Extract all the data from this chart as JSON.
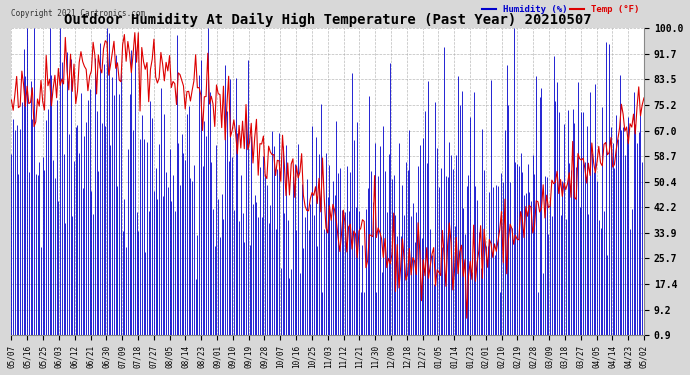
{
  "title": "Outdoor Humidity At Daily High Temperature (Past Year) 20210507",
  "copyright": "Copyright 2021 Cartronics.com",
  "legend_humidity": "Humidity (%)",
  "legend_temp": "Temp (°F)",
  "ylim": [
    0.9,
    100.0
  ],
  "yticks": [
    0.9,
    9.2,
    17.4,
    25.7,
    33.9,
    42.2,
    50.4,
    58.7,
    67.0,
    75.2,
    83.5,
    91.7,
    100.0
  ],
  "background_color": "#d8d8d8",
  "plot_bg_color": "#ffffff",
  "grid_color": "#aaaaaa",
  "humidity_color": "#0000cc",
  "temp_color": "#dd0000",
  "title_fontsize": 10,
  "n_points": 365,
  "x_labels": [
    "05/07",
    "05/16",
    "05/25",
    "06/03",
    "06/12",
    "06/21",
    "06/30",
    "07/09",
    "07/18",
    "07/27",
    "08/05",
    "08/14",
    "08/23",
    "09/01",
    "09/10",
    "09/19",
    "09/28",
    "10/07",
    "10/16",
    "10/25",
    "11/03",
    "11/12",
    "11/21",
    "11/30",
    "12/09",
    "12/18",
    "12/27",
    "01/05",
    "01/14",
    "01/23",
    "02/01",
    "02/10",
    "02/19",
    "02/28",
    "03/09",
    "03/18",
    "03/27",
    "04/05",
    "04/14",
    "04/23",
    "05/02"
  ]
}
